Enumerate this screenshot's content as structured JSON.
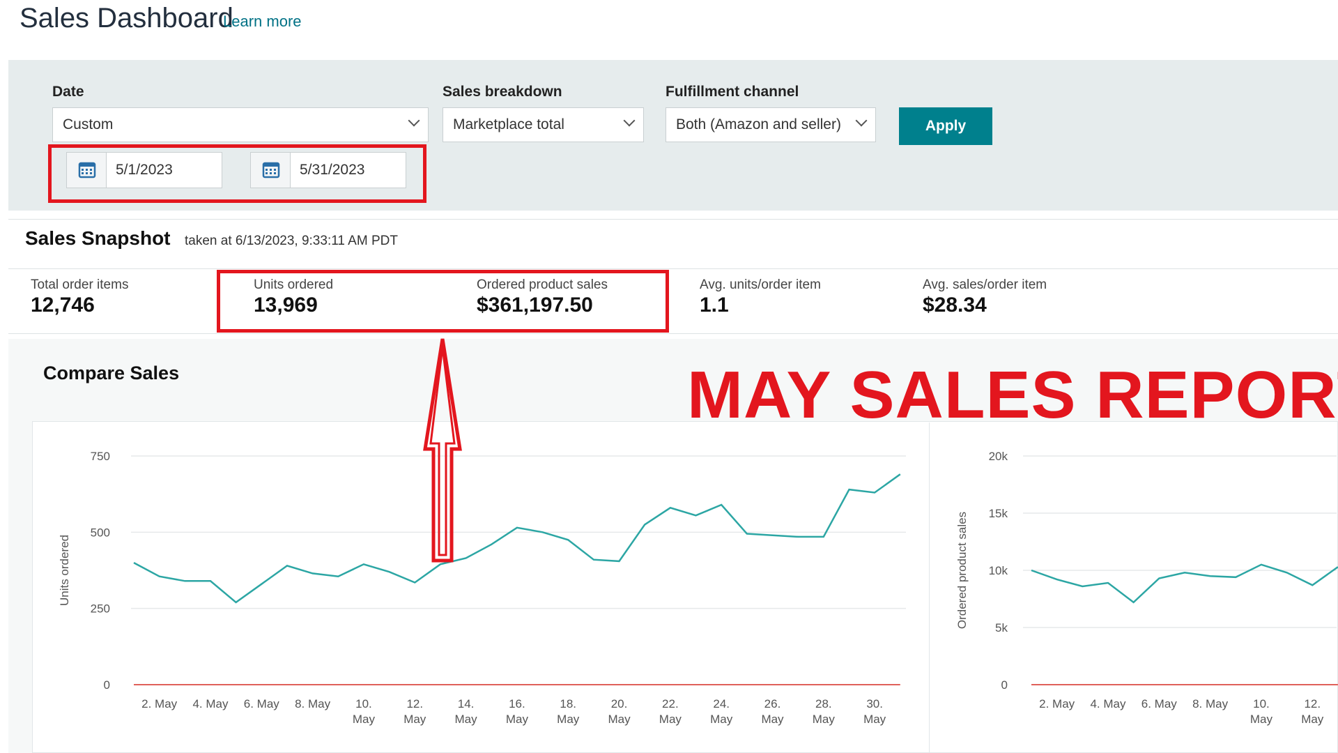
{
  "header": {
    "title": "Sales Dashboard",
    "learn_more": "Learn more"
  },
  "filters": {
    "date_label": "Date",
    "date_value": "Custom",
    "start_date": "5/1/2023",
    "end_date": "5/31/2023",
    "breakdown_label": "Sales breakdown",
    "breakdown_value": "Marketplace total",
    "fulfillment_label": "Fulfillment channel",
    "fulfillment_value": "Both (Amazon and seller)",
    "apply_label": "Apply"
  },
  "snapshot": {
    "title": "Sales Snapshot",
    "taken_at": "taken at 6/13/2023, 9:33:11 AM PDT",
    "metrics": [
      {
        "label": "Total order items",
        "value": "12,746"
      },
      {
        "label": "Units ordered",
        "value": "13,969"
      },
      {
        "label": "Ordered product sales",
        "value": "$361,197.50"
      },
      {
        "label": "Avg. units/order item",
        "value": "1.1"
      },
      {
        "label": "Avg. sales/order item",
        "value": "$28.34"
      }
    ]
  },
  "compare": {
    "title": "Compare Sales"
  },
  "annotation": {
    "banner": "MAY SALES REPORT"
  },
  "colors": {
    "line": "#2ca6a4",
    "baseline": "#e0605a",
    "accent": "#00808d",
    "annotation": "#e3161e"
  },
  "chart_data": [
    {
      "type": "line",
      "ylabel": "Units ordered",
      "ylim": [
        0,
        750
      ],
      "yticks": [
        "0",
        "250",
        "500",
        "750"
      ],
      "ytick_values": [
        0,
        250,
        500,
        750
      ],
      "xtick_labels": [
        [
          "2.",
          "May"
        ],
        [
          "4.",
          "May"
        ],
        [
          "6.",
          "May"
        ],
        [
          "8.",
          "May"
        ],
        [
          "10.",
          "May"
        ],
        [
          "12.",
          "May"
        ],
        [
          "14.",
          "May"
        ],
        [
          "16.",
          "May"
        ],
        [
          "18.",
          "May"
        ],
        [
          "20.",
          "May"
        ],
        [
          "22.",
          "May"
        ],
        [
          "24.",
          "May"
        ],
        [
          "26.",
          "May"
        ],
        [
          "28.",
          "May"
        ],
        [
          "30.",
          "May"
        ]
      ],
      "xtick_days": [
        2,
        4,
        6,
        8,
        10,
        12,
        14,
        16,
        18,
        20,
        22,
        24,
        26,
        28,
        30
      ],
      "x": [
        1,
        2,
        3,
        4,
        5,
        6,
        7,
        8,
        9,
        10,
        11,
        12,
        13,
        14,
        15,
        16,
        17,
        18,
        19,
        20,
        21,
        22,
        23,
        24,
        25,
        26,
        27,
        28,
        29,
        30,
        31
      ],
      "series": [
        {
          "values": [
            400,
            355,
            340,
            340,
            270,
            330,
            390,
            365,
            355,
            395,
            370,
            335,
            395,
            415,
            460,
            515,
            500,
            475,
            410,
            405,
            525,
            580,
            555,
            590,
            495,
            490,
            485,
            485,
            640,
            630,
            690
          ]
        },
        {
          "values": [
            0,
            0,
            0,
            0,
            0,
            0,
            0,
            0,
            0,
            0,
            0,
            0,
            0,
            0,
            0,
            0,
            0,
            0,
            0,
            0,
            0,
            0,
            0,
            0,
            0,
            0,
            0,
            0,
            0,
            0,
            0
          ]
        }
      ]
    },
    {
      "type": "line",
      "ylabel": "Ordered product sales",
      "ylim": [
        0,
        20000
      ],
      "yticks": [
        "0",
        "5k",
        "10k",
        "15k",
        "20k"
      ],
      "ytick_values": [
        0,
        5000,
        10000,
        15000,
        20000
      ],
      "xtick_labels": [
        [
          "2.",
          "May"
        ],
        [
          "4.",
          "May"
        ],
        [
          "6.",
          "May"
        ],
        [
          "8.",
          "May"
        ],
        [
          "10.",
          "May"
        ],
        [
          "12.",
          "May"
        ]
      ],
      "xtick_days": [
        2,
        4,
        6,
        8,
        10,
        12
      ],
      "x": [
        1,
        2,
        3,
        4,
        5,
        6,
        7,
        8,
        9,
        10,
        11,
        12,
        13
      ],
      "series": [
        {
          "values": [
            10000,
            9200,
            8600,
            8900,
            7200,
            9300,
            9800,
            9500,
            9400,
            10500,
            9800,
            8700,
            10300
          ]
        },
        {
          "values": [
            0,
            0,
            0,
            0,
            0,
            0,
            0,
            0,
            0,
            0,
            0,
            0,
            0
          ]
        }
      ]
    }
  ]
}
